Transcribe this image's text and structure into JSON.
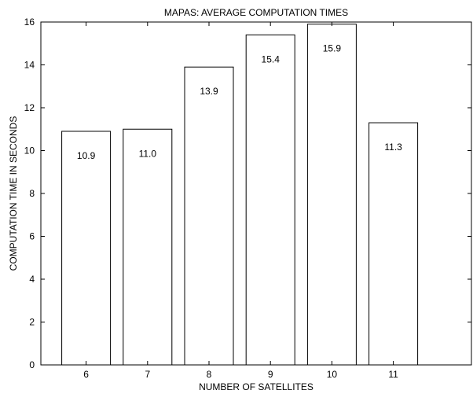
{
  "chart_data": {
    "type": "bar",
    "title": "MAPAS: AVERAGE COMPUTATION TIMES",
    "xlabel": "NUMBER OF SATELLITES",
    "ylabel": "COMPUTATION TIME IN SECONDS",
    "categories": [
      "6",
      "7",
      "8",
      "9",
      "10",
      "11"
    ],
    "values": [
      10.9,
      11.0,
      13.9,
      15.4,
      15.9,
      11.3
    ],
    "value_labels": [
      "10.9",
      "11.0",
      "13.9",
      "15.4",
      "15.9",
      "11.3"
    ],
    "ylim": [
      0,
      16
    ],
    "yticks": [
      0,
      2,
      4,
      6,
      8,
      10,
      12,
      14,
      16
    ],
    "grid": false,
    "legend": "none",
    "bar_fill": "#ffffff",
    "bar_stroke": "#000000"
  }
}
